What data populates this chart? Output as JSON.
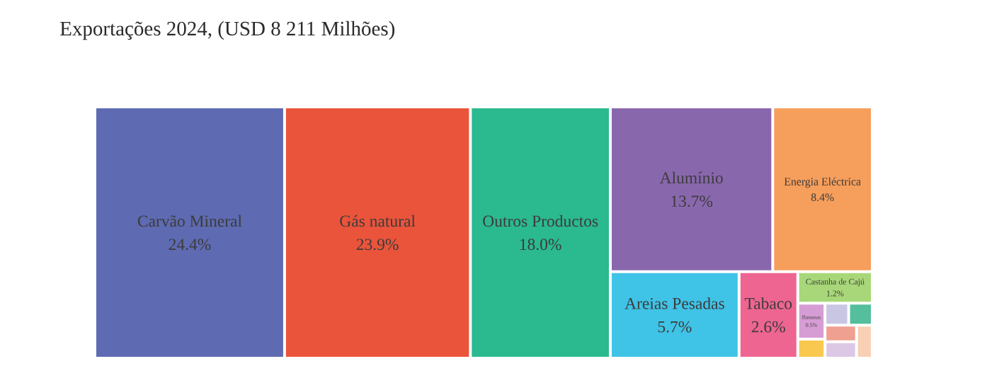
{
  "chart_data": {
    "type": "other",
    "title": "Exportações 2024, (USD 8 211 Milhões)",
    "categories": [
      "Carvão Mineral",
      "Gás natural",
      "Outros Productos",
      "Alumínio",
      "Energia Eléctrica",
      "Areias Pesadas",
      "Tabaco",
      "Castanha de Cajú",
      "Bananas",
      null,
      null,
      null,
      null,
      null,
      null
    ],
    "values": [
      24.4,
      23.9,
      18.0,
      13.7,
      8.4,
      5.7,
      2.6,
      1.2,
      0.5,
      null,
      null,
      null,
      null,
      null,
      null
    ],
    "value_labels": [
      "24.4%",
      "23.9%",
      "18.0%",
      "13.7%",
      "8.4%",
      "5.7%",
      "2.6%",
      "1.2%",
      "0.5%",
      null,
      null,
      null,
      null,
      null,
      null
    ],
    "colors": [
      "#5e6ab1",
      "#ea543b",
      "#2bb98f",
      "#8967ad",
      "#f69e5b",
      "#3fc3e6",
      "#ee6592",
      "#a8d779",
      "#d69cd4",
      "#f9c84f",
      "#c9c6e3",
      "#55be9c",
      "#efa090",
      "#dcc8e4",
      "#f8d0b4"
    ]
  }
}
